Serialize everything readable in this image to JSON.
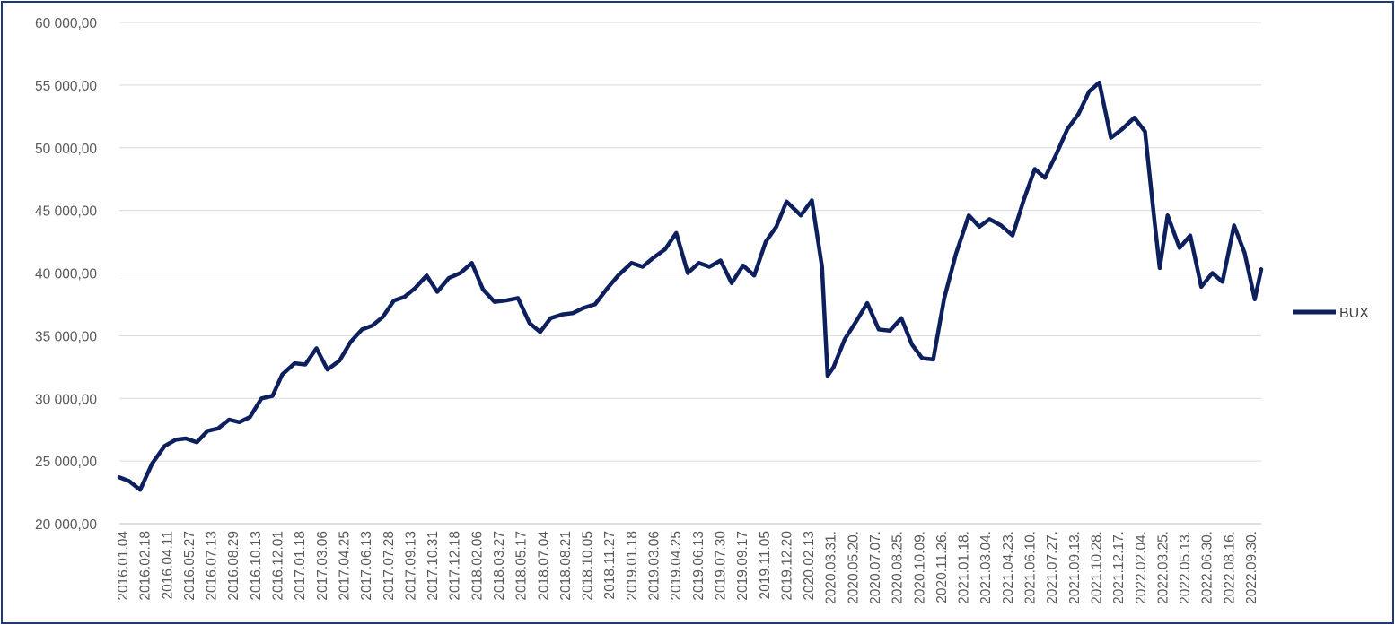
{
  "chart_data": {
    "type": "line",
    "title": "",
    "xlabel": "",
    "ylabel": "",
    "ylim": [
      20000,
      60000
    ],
    "y_ticks": [
      20000,
      25000,
      30000,
      35000,
      40000,
      45000,
      50000,
      55000,
      60000
    ],
    "y_tick_labels": [
      "20 000,00",
      "25 000,00",
      "30 000,00",
      "35 000,00",
      "40 000,00",
      "45 000,00",
      "50 000,00",
      "55 000,00",
      "60 000,00"
    ],
    "grid": "horizontal",
    "legend_position": "right",
    "x_tick_labels": [
      "2016.01.04",
      "2016.02.18",
      "2016.04.11",
      "2016.05.27",
      "2016.07.13",
      "2016.08.29",
      "2016.10.13",
      "2016.12.01",
      "2017.01.18",
      "2017.03.06",
      "2017.04.25",
      "2017.06.13",
      "2017.07.28",
      "2017.09.13",
      "2017.10.31",
      "2017.12.18",
      "2018.02.06",
      "2018.03.27",
      "2018.05.17",
      "2018.07.04",
      "2018.08.21",
      "2018.10.05",
      "2018.11.27",
      "2019.01.18",
      "2019.03.06",
      "2019.04.25",
      "2019.06.13",
      "2019.07.30",
      "2019.09.17",
      "2019.11.05",
      "2019.12.20",
      "2020.02.13",
      "2020.03.31.",
      "2020.05.20.",
      "2020.07.07.",
      "2020.08.25.",
      "2020.10.09.",
      "2020.11.26.",
      "2021.01.18.",
      "2021.03.04.",
      "2021.04.23.",
      "2021.06.10.",
      "2021.07.27.",
      "2021.09.13.",
      "2021.10.28.",
      "2021.12.17.",
      "2022.02.04.",
      "2022.03.25.",
      "2022.05.13.",
      "2022.06.30.",
      "2022.08.16.",
      "2022.09.30."
    ],
    "series": [
      {
        "name": "BUX",
        "color": "#0d1f5c",
        "x": [
          "2016.01.04",
          "2016.01.25",
          "2016.02.18",
          "2016.03.15",
          "2016.04.11",
          "2016.05.05",
          "2016.05.27",
          "2016.06.20",
          "2016.07.13",
          "2016.08.05",
          "2016.08.29",
          "2016.09.20",
          "2016.10.13",
          "2016.11.07",
          "2016.12.01",
          "2016.12.22",
          "2017.01.18",
          "2017.02.10",
          "2017.03.06",
          "2017.03.30",
          "2017.04.25",
          "2017.05.19",
          "2017.06.13",
          "2017.07.05",
          "2017.07.28",
          "2017.08.21",
          "2017.09.13",
          "2017.10.06",
          "2017.10.31",
          "2017.11.23",
          "2017.12.18",
          "2018.01.12",
          "2018.02.06",
          "2018.03.02",
          "2018.03.27",
          "2018.04.20",
          "2018.05.17",
          "2018.06.11",
          "2018.07.04",
          "2018.07.27",
          "2018.08.21",
          "2018.09.13",
          "2018.10.05",
          "2018.10.31",
          "2018.11.27",
          "2018.12.20",
          "2019.01.18",
          "2019.02.11",
          "2019.03.06",
          "2019.04.01",
          "2019.04.25",
          "2019.05.20",
          "2019.06.13",
          "2019.07.06",
          "2019.07.30",
          "2019.08.23",
          "2019.09.17",
          "2019.10.11",
          "2019.11.05",
          "2019.11.28",
          "2019.12.20",
          "2020.01.20",
          "2020.02.13",
          "2020.03.06",
          "2020.03.18",
          "2020.03.31",
          "2020.04.24",
          "2020.05.20",
          "2020.06.12",
          "2020.07.07",
          "2020.07.31",
          "2020.08.25",
          "2020.09.17",
          "2020.10.09",
          "2020.11.02",
          "2020.11.26",
          "2020.12.21",
          "2021.01.18",
          "2021.02.10",
          "2021.03.04",
          "2021.03.29",
          "2021.04.23",
          "2021.05.17",
          "2021.06.10",
          "2021.07.02",
          "2021.07.27",
          "2021.08.20",
          "2021.09.13",
          "2021.10.06",
          "2021.10.28",
          "2021.11.22",
          "2021.12.17",
          "2022.01.12",
          "2022.02.04",
          "2022.02.25",
          "2022.03.08",
          "2022.03.25",
          "2022.04.20",
          "2022.05.13",
          "2022.06.06",
          "2022.06.30",
          "2022.07.22",
          "2022.08.16",
          "2022.09.08",
          "2022.09.30",
          "2022.10.14"
        ],
        "values": [
          23700,
          23400,
          22700,
          24800,
          26200,
          26700,
          26800,
          26500,
          27400,
          27600,
          28300,
          28100,
          28500,
          30000,
          30200,
          31900,
          32800,
          32700,
          34000,
          32300,
          33000,
          34500,
          35500,
          35800,
          36500,
          37800,
          38100,
          38800,
          39800,
          38500,
          39600,
          40000,
          40800,
          38700,
          37700,
          37800,
          38000,
          36000,
          35300,
          36400,
          36700,
          36800,
          37200,
          37500,
          38800,
          39800,
          40800,
          40500,
          41200,
          41900,
          43200,
          40000,
          40800,
          40500,
          41000,
          39200,
          40600,
          39800,
          42500,
          43700,
          45700,
          44600,
          45800,
          40500,
          31800,
          32500,
          34700,
          36200,
          37600,
          35500,
          35400,
          36400,
          34300,
          33200,
          33100,
          38000,
          41500,
          44600,
          43700,
          44300,
          43800,
          43000,
          45800,
          48300,
          47600,
          49500,
          51500,
          52700,
          54500,
          55200,
          50800,
          51500,
          52400,
          51300,
          44000,
          40400,
          44600,
          42000,
          43000,
          38900,
          40000,
          39300,
          43800,
          41600,
          37900,
          40300
        ]
      }
    ]
  },
  "legend": {
    "label": "BUX"
  }
}
